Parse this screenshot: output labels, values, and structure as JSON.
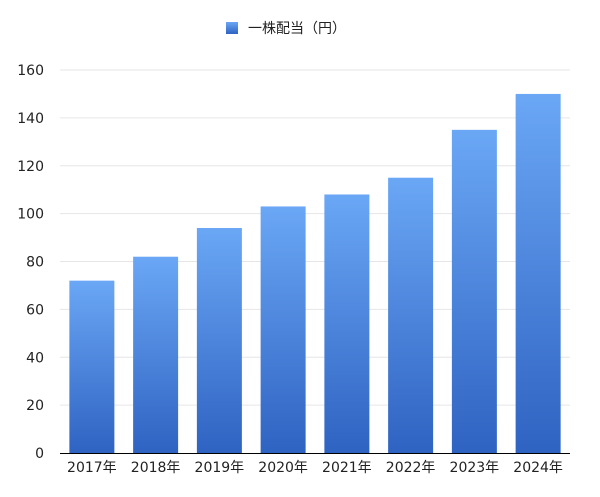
{
  "chart_data": {
    "type": "bar",
    "title": "",
    "xlabel": "",
    "ylabel": "",
    "categories": [
      "2017年",
      "2018年",
      "2019年",
      "2020年",
      "2021年",
      "2022年",
      "2023年",
      "2024年"
    ],
    "series": [
      {
        "name": "一株配当（円）",
        "values": [
          72,
          82,
          94,
          103,
          108,
          115,
          135,
          150
        ]
      }
    ],
    "ylim": [
      0,
      160
    ],
    "yticks": [
      0,
      20,
      40,
      60,
      80,
      100,
      120,
      140,
      160
    ],
    "grid": true,
    "legend_position": "top-center",
    "colors": {
      "bar_top": "#6aa7f5",
      "bar_bottom": "#2f63c2",
      "grid": "#e6e6e6",
      "axis": "#000000"
    }
  }
}
